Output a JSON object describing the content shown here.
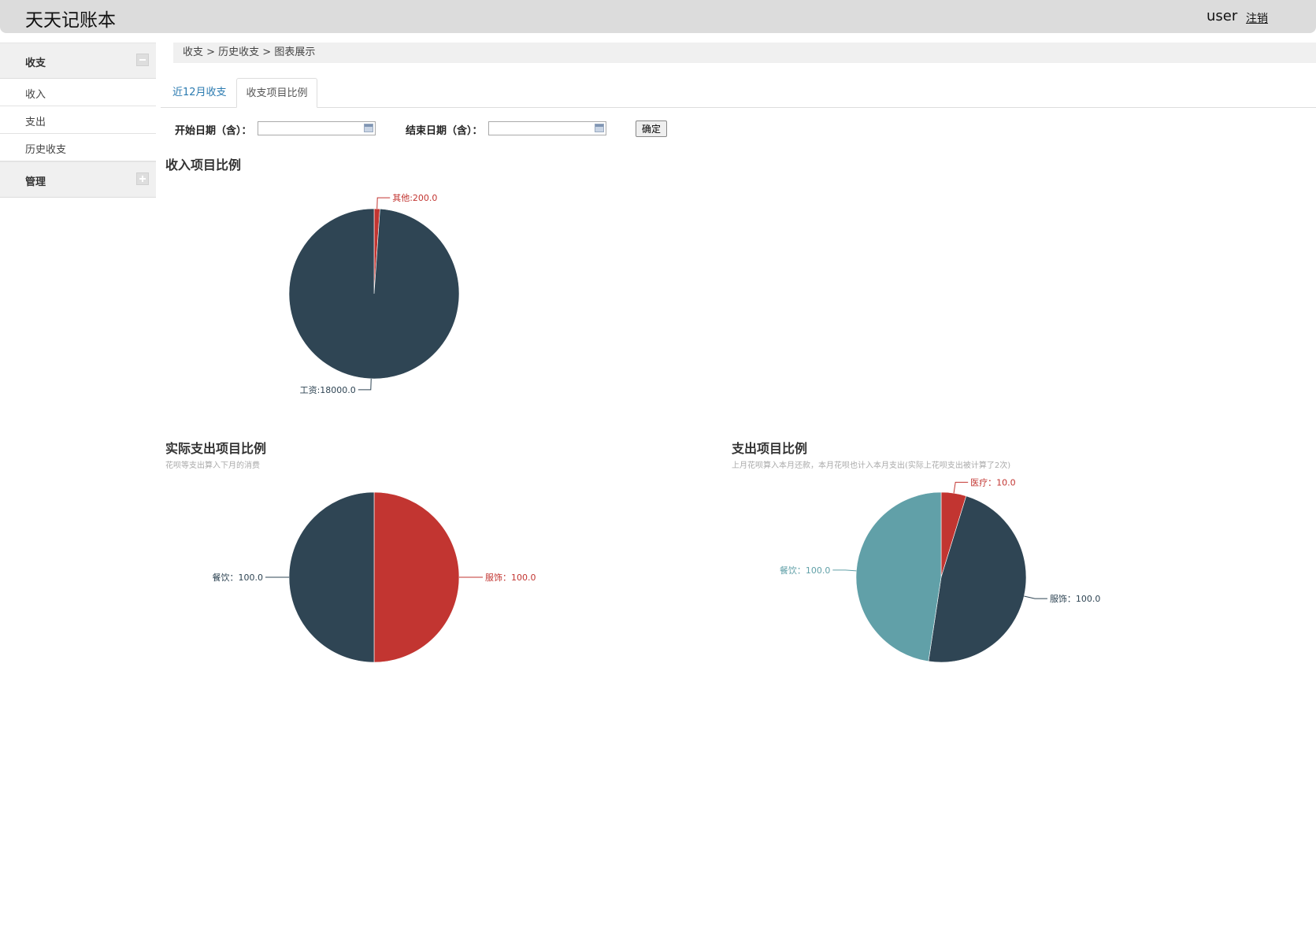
{
  "header": {
    "app_title": "天天记账本",
    "user": "user",
    "logout": "注销"
  },
  "sidebar": {
    "groups": [
      {
        "label": "收支",
        "expanded": true,
        "items": [
          "收入",
          "支出",
          "历史收支"
        ]
      },
      {
        "label": "管理",
        "expanded": false,
        "items": []
      }
    ]
  },
  "breadcrumb": "收支 > 历史收支 > 图表展示",
  "tabs": [
    {
      "label": "近12月收支",
      "active": false
    },
    {
      "label": "收支项目比例",
      "active": true
    }
  ],
  "filters": {
    "start_label": "开始日期（含）：",
    "end_label": "结束日期（含）：",
    "start_value": "",
    "end_value": "",
    "confirm_label": "确定"
  },
  "colors": {
    "dark": "#2f4554",
    "red": "#c23531",
    "teal": "#61a0a8"
  },
  "chart_data": [
    {
      "type": "pie",
      "title": "收入项目比例",
      "subtitle": "",
      "slices": [
        {
          "name": "其他",
          "value": 200.0,
          "label": "其他:200.0",
          "color": "#c23531"
        },
        {
          "name": "工资",
          "value": 18000.0,
          "label": "工资:18000.0",
          "color": "#2f4554"
        }
      ]
    },
    {
      "type": "pie",
      "title": "实际支出项目比例",
      "subtitle": "花呗等支出算入下月的消费",
      "slices": [
        {
          "name": "服饰",
          "value": 100.0,
          "label": "服饰：100.0",
          "color": "#c23531"
        },
        {
          "name": "餐饮",
          "value": 100.0,
          "label": "餐饮：100.0",
          "color": "#2f4554"
        }
      ]
    },
    {
      "type": "pie",
      "title": "支出项目比例",
      "subtitle": "上月花呗算入本月还款，本月花呗也计入本月支出(实际上花呗支出被计算了2次)",
      "slices": [
        {
          "name": "医疗",
          "value": 10.0,
          "label": "医疗：10.0",
          "color": "#c23531"
        },
        {
          "name": "服饰",
          "value": 100.0,
          "label": "服饰：100.0",
          "color": "#2f4554"
        },
        {
          "name": "餐饮",
          "value": 100.0,
          "label": "餐饮：100.0",
          "color": "#61a0a8"
        }
      ]
    }
  ]
}
